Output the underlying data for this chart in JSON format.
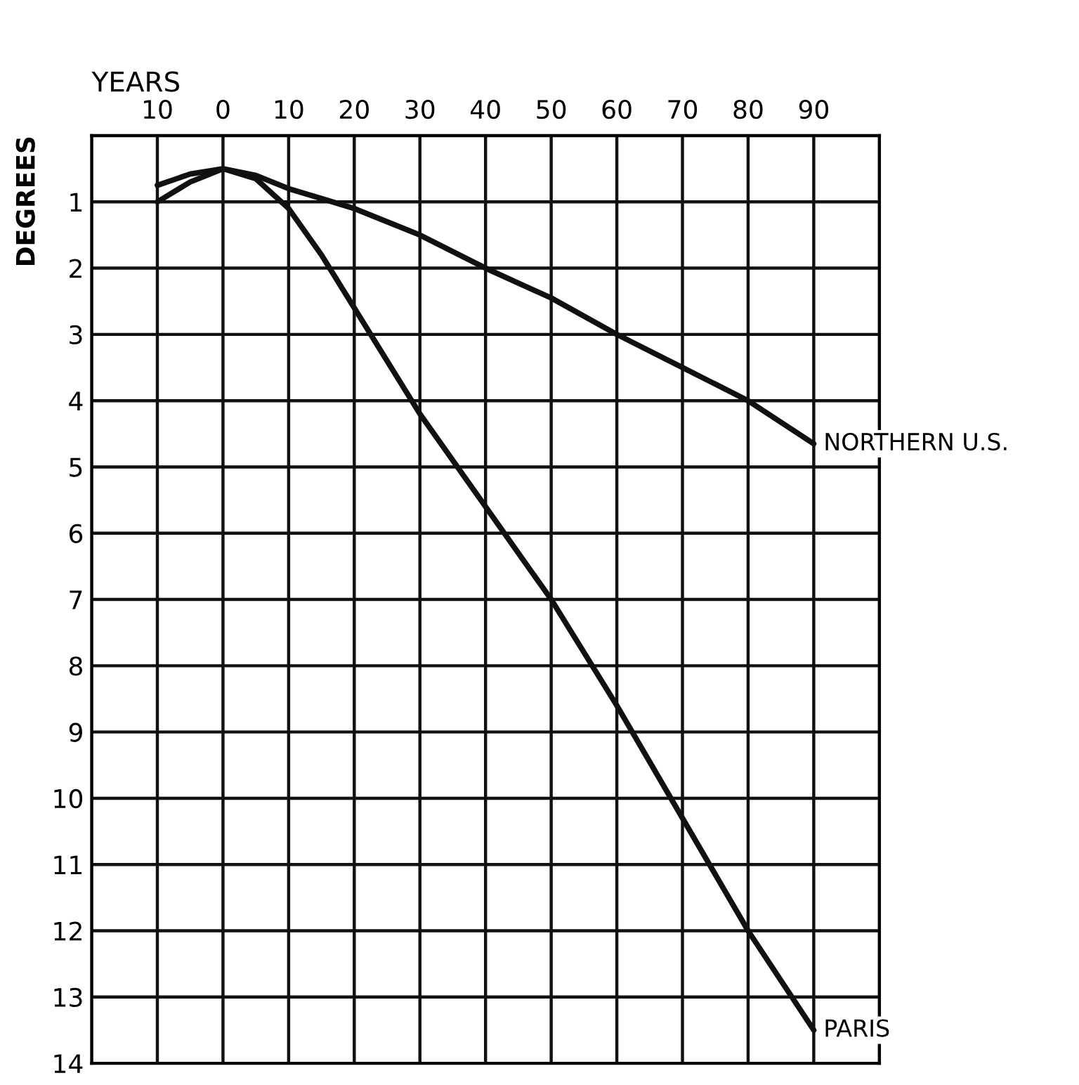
{
  "chart_data": {
    "type": "line",
    "xlabel": "YEARS",
    "ylabel": "DEGREES",
    "xlim": [
      -20,
      100
    ],
    "ylim": [
      14,
      0
    ],
    "xticks": [
      {
        "value": -10,
        "label": "10"
      },
      0,
      10,
      20,
      30,
      40,
      50,
      60,
      70,
      80,
      90
    ],
    "yticks": [
      1,
      2,
      3,
      4,
      5,
      6,
      7,
      8,
      9,
      10,
      11,
      12,
      13,
      14
    ],
    "grid": true,
    "legend": false,
    "marker": "none",
    "line_style": "solid",
    "series": [
      {
        "name": "NORTHERN U.S.",
        "color": "#111111",
        "x": [
          -10,
          -5,
          0,
          5,
          10,
          15,
          20,
          30,
          40,
          50,
          60,
          70,
          80,
          90
        ],
        "values": [
          0.75,
          0.58,
          0.5,
          0.6,
          0.8,
          0.95,
          1.1,
          1.5,
          2.0,
          2.45,
          3.0,
          3.5,
          4.0,
          4.65
        ]
      },
      {
        "name": "PARIS",
        "color": "#111111",
        "x": [
          -10,
          -5,
          0,
          5,
          10,
          15,
          20,
          30,
          40,
          50,
          60,
          70,
          80,
          90
        ],
        "values": [
          1.0,
          0.7,
          0.5,
          0.65,
          1.1,
          1.8,
          2.6,
          4.2,
          5.6,
          7.0,
          8.6,
          10.3,
          12.0,
          13.5
        ]
      }
    ]
  }
}
